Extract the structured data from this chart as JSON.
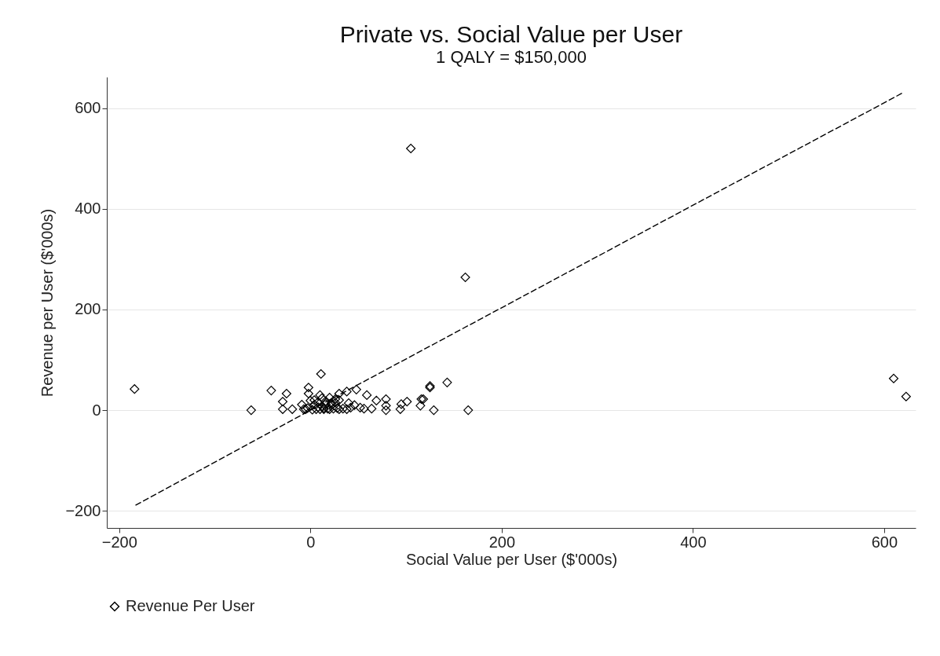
{
  "chart_data": {
    "type": "scatter",
    "title": "Private vs. Social Value per User",
    "subtitle": "1 QALY = $150,000",
    "xlabel": "Social Value per User ($'000s)",
    "ylabel": "Revenue per User ($'000s)",
    "xlim": [
      -213,
      633
    ],
    "xticks": [
      -200,
      0,
      200,
      400,
      600
    ],
    "ylim": [
      -234,
      662
    ],
    "yticks": [
      -200,
      0,
      200,
      400,
      600
    ],
    "grid": "y",
    "legend": "bottom",
    "marker": "diamond",
    "series": [
      {
        "name": "Revenue Per User",
        "color": "#000000",
        "x": [
          -184,
          105,
          162,
          610,
          623,
          143,
          125,
          165,
          129,
          116,
          95,
          -62,
          -41,
          -25,
          11,
          -29,
          -29,
          -19,
          -2,
          -2,
          0,
          -9,
          -7,
          -5,
          -3,
          2,
          4,
          6,
          8,
          10,
          12,
          14,
          16,
          18,
          20,
          22,
          24,
          26,
          28,
          30,
          34,
          38,
          42,
          4,
          8,
          12,
          16,
          22,
          26,
          20,
          30,
          38,
          48,
          59,
          56,
          69,
          79,
          79,
          79,
          94,
          101,
          118,
          115,
          125,
          40,
          46,
          52,
          64,
          10,
          14,
          30
        ],
        "values": [
          42,
          520,
          264,
          63,
          27,
          55,
          45,
          0,
          0,
          22,
          12,
          0,
          39,
          33,
          72,
          17,
          2,
          2,
          45,
          33,
          19,
          11,
          2,
          2,
          4,
          1,
          11,
          2,
          6,
          2,
          8,
          2,
          12,
          3,
          2,
          10,
          3,
          15,
          4,
          2,
          3,
          2,
          5,
          20,
          16,
          24,
          18,
          14,
          22,
          25,
          33,
          37,
          41,
          30,
          3,
          19,
          22,
          9,
          0,
          2,
          17,
          22,
          9,
          48,
          14,
          10,
          5,
          3,
          30,
          4,
          20
        ]
      },
      {
        "type": "line",
        "color": "#000000",
        "line_style": "dashed",
        "marker": "none",
        "x": [
          -183,
          0,
          619
        ],
        "values": [
          -189,
          0,
          630
        ]
      }
    ]
  }
}
